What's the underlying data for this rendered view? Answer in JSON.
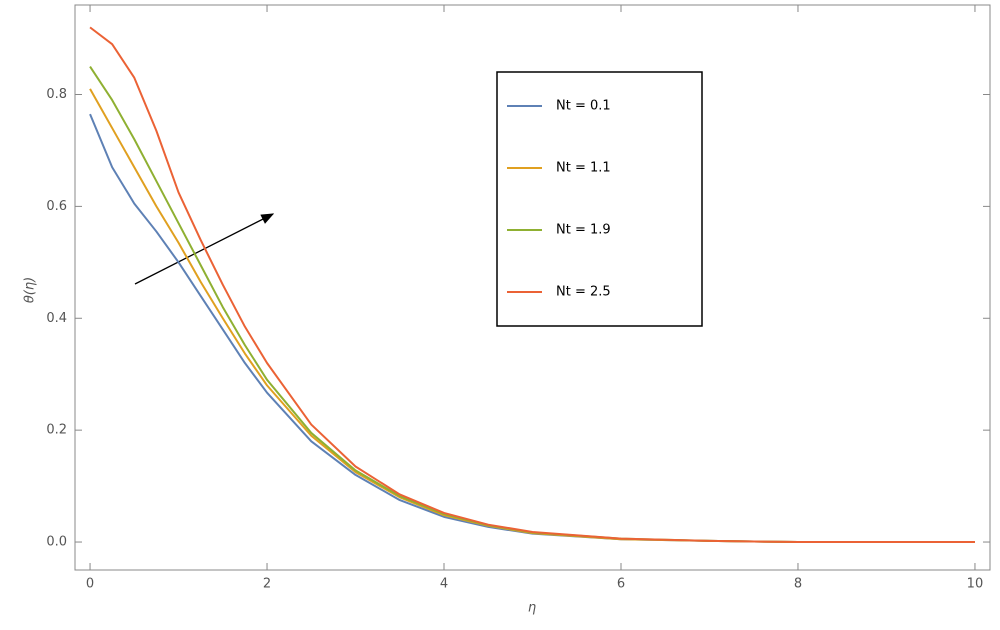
{
  "chart_data": {
    "type": "line",
    "x_label": "η",
    "y_label": "θ(η)",
    "x": [
      0,
      0.25,
      0.5,
      0.75,
      1,
      1.25,
      1.5,
      1.75,
      2,
      2.5,
      3,
      3.5,
      4,
      4.5,
      5,
      6,
      7,
      8,
      9,
      10
    ],
    "series": [
      {
        "name": "Nt = 0.1",
        "color": "#5e81b5",
        "values": [
          0.765,
          0.67,
          0.605,
          0.555,
          0.5,
          0.44,
          0.38,
          0.32,
          0.267,
          0.18,
          0.12,
          0.075,
          0.045,
          0.027,
          0.015,
          0.005,
          0.002,
          0,
          0,
          0
        ]
      },
      {
        "name": "Nt = 1.1",
        "color": "#e0a020",
        "values": [
          0.81,
          0.74,
          0.67,
          0.6,
          0.535,
          0.465,
          0.4,
          0.337,
          0.28,
          0.19,
          0.125,
          0.08,
          0.048,
          0.029,
          0.016,
          0.005,
          0.002,
          0,
          0,
          0
        ]
      },
      {
        "name": "Nt = 1.9",
        "color": "#8fb032",
        "values": [
          0.85,
          0.79,
          0.72,
          0.645,
          0.57,
          0.495,
          0.42,
          0.352,
          0.29,
          0.195,
          0.128,
          0.082,
          0.05,
          0.03,
          0.017,
          0.006,
          0.002,
          0,
          0,
          0
        ]
      },
      {
        "name": "Nt = 2.5",
        "color": "#eb6235",
        "values": [
          0.92,
          0.89,
          0.83,
          0.735,
          0.625,
          0.54,
          0.46,
          0.385,
          0.32,
          0.21,
          0.135,
          0.085,
          0.052,
          0.031,
          0.018,
          0.006,
          0.002,
          0,
          0,
          0
        ]
      }
    ],
    "xlim": [
      -0.17,
      10.17
    ],
    "ylim": [
      -0.05,
      0.96
    ],
    "xticks": [
      0,
      2,
      4,
      6,
      8,
      10
    ],
    "yticks": [
      {
        "value": 0,
        "label": "0.0"
      },
      0.2,
      0.4,
      0.6,
      0.8
    ],
    "grid": false
  }
}
